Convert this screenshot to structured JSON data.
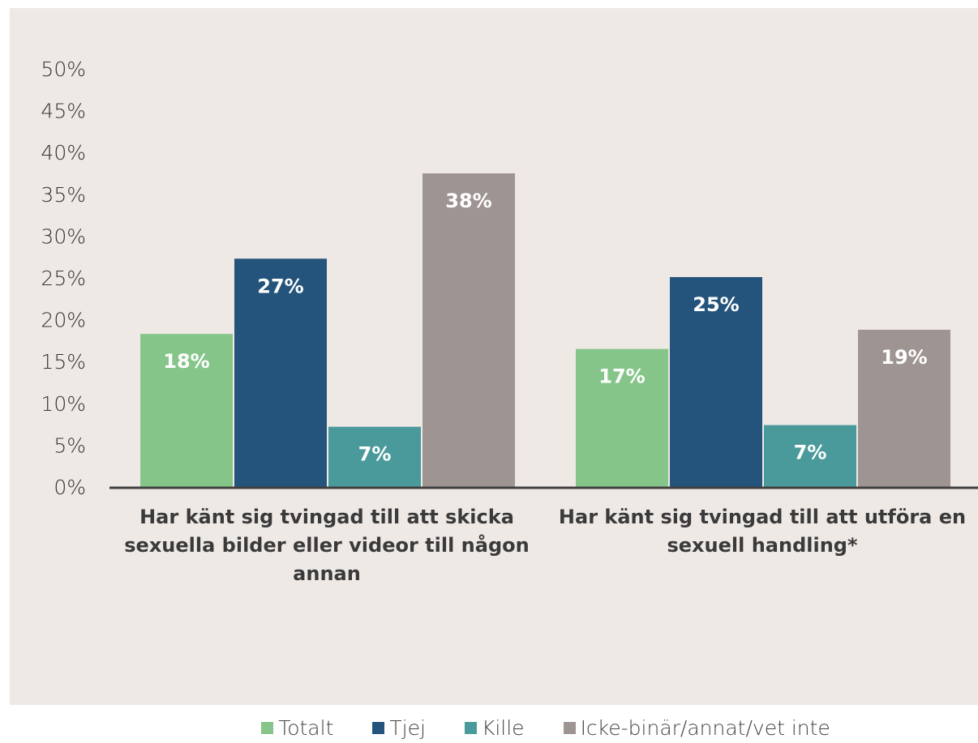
{
  "chart_data": {
    "type": "bar",
    "title": "",
    "xlabel": "",
    "ylabel": "",
    "ylim": [
      0,
      50
    ],
    "yticks": [
      "0%",
      "5%",
      "10%",
      "15%",
      "20%",
      "25%",
      "30%",
      "35%",
      "40%",
      "45%",
      "50%"
    ],
    "grid": false,
    "legend_position": "bottom",
    "categories": [
      [
        "Har känt sig tvingad till att skicka",
        "sexuella bilder eller videor till någon",
        "annan"
      ],
      [
        "Har känt sig tvingad till att utföra en",
        "sexuell handling*"
      ]
    ],
    "series": [
      {
        "name": "Totalt",
        "color": "#86c58a",
        "values": [
          18.3,
          16.5
        ],
        "labels": [
          "18%",
          "17%"
        ]
      },
      {
        "name": "Tjej",
        "color": "#24547c",
        "values": [
          27.3,
          25.1
        ],
        "labels": [
          "27%",
          "25%"
        ]
      },
      {
        "name": "Kille",
        "color": "#4a9a9b",
        "values": [
          7.2,
          7.4
        ],
        "labels": [
          "7%",
          "7%"
        ]
      },
      {
        "name": "Icke-binär/annat/vet inte",
        "color": "#9e9492",
        "values": [
          37.5,
          18.8
        ],
        "labels": [
          "38%",
          "19%"
        ]
      }
    ]
  }
}
